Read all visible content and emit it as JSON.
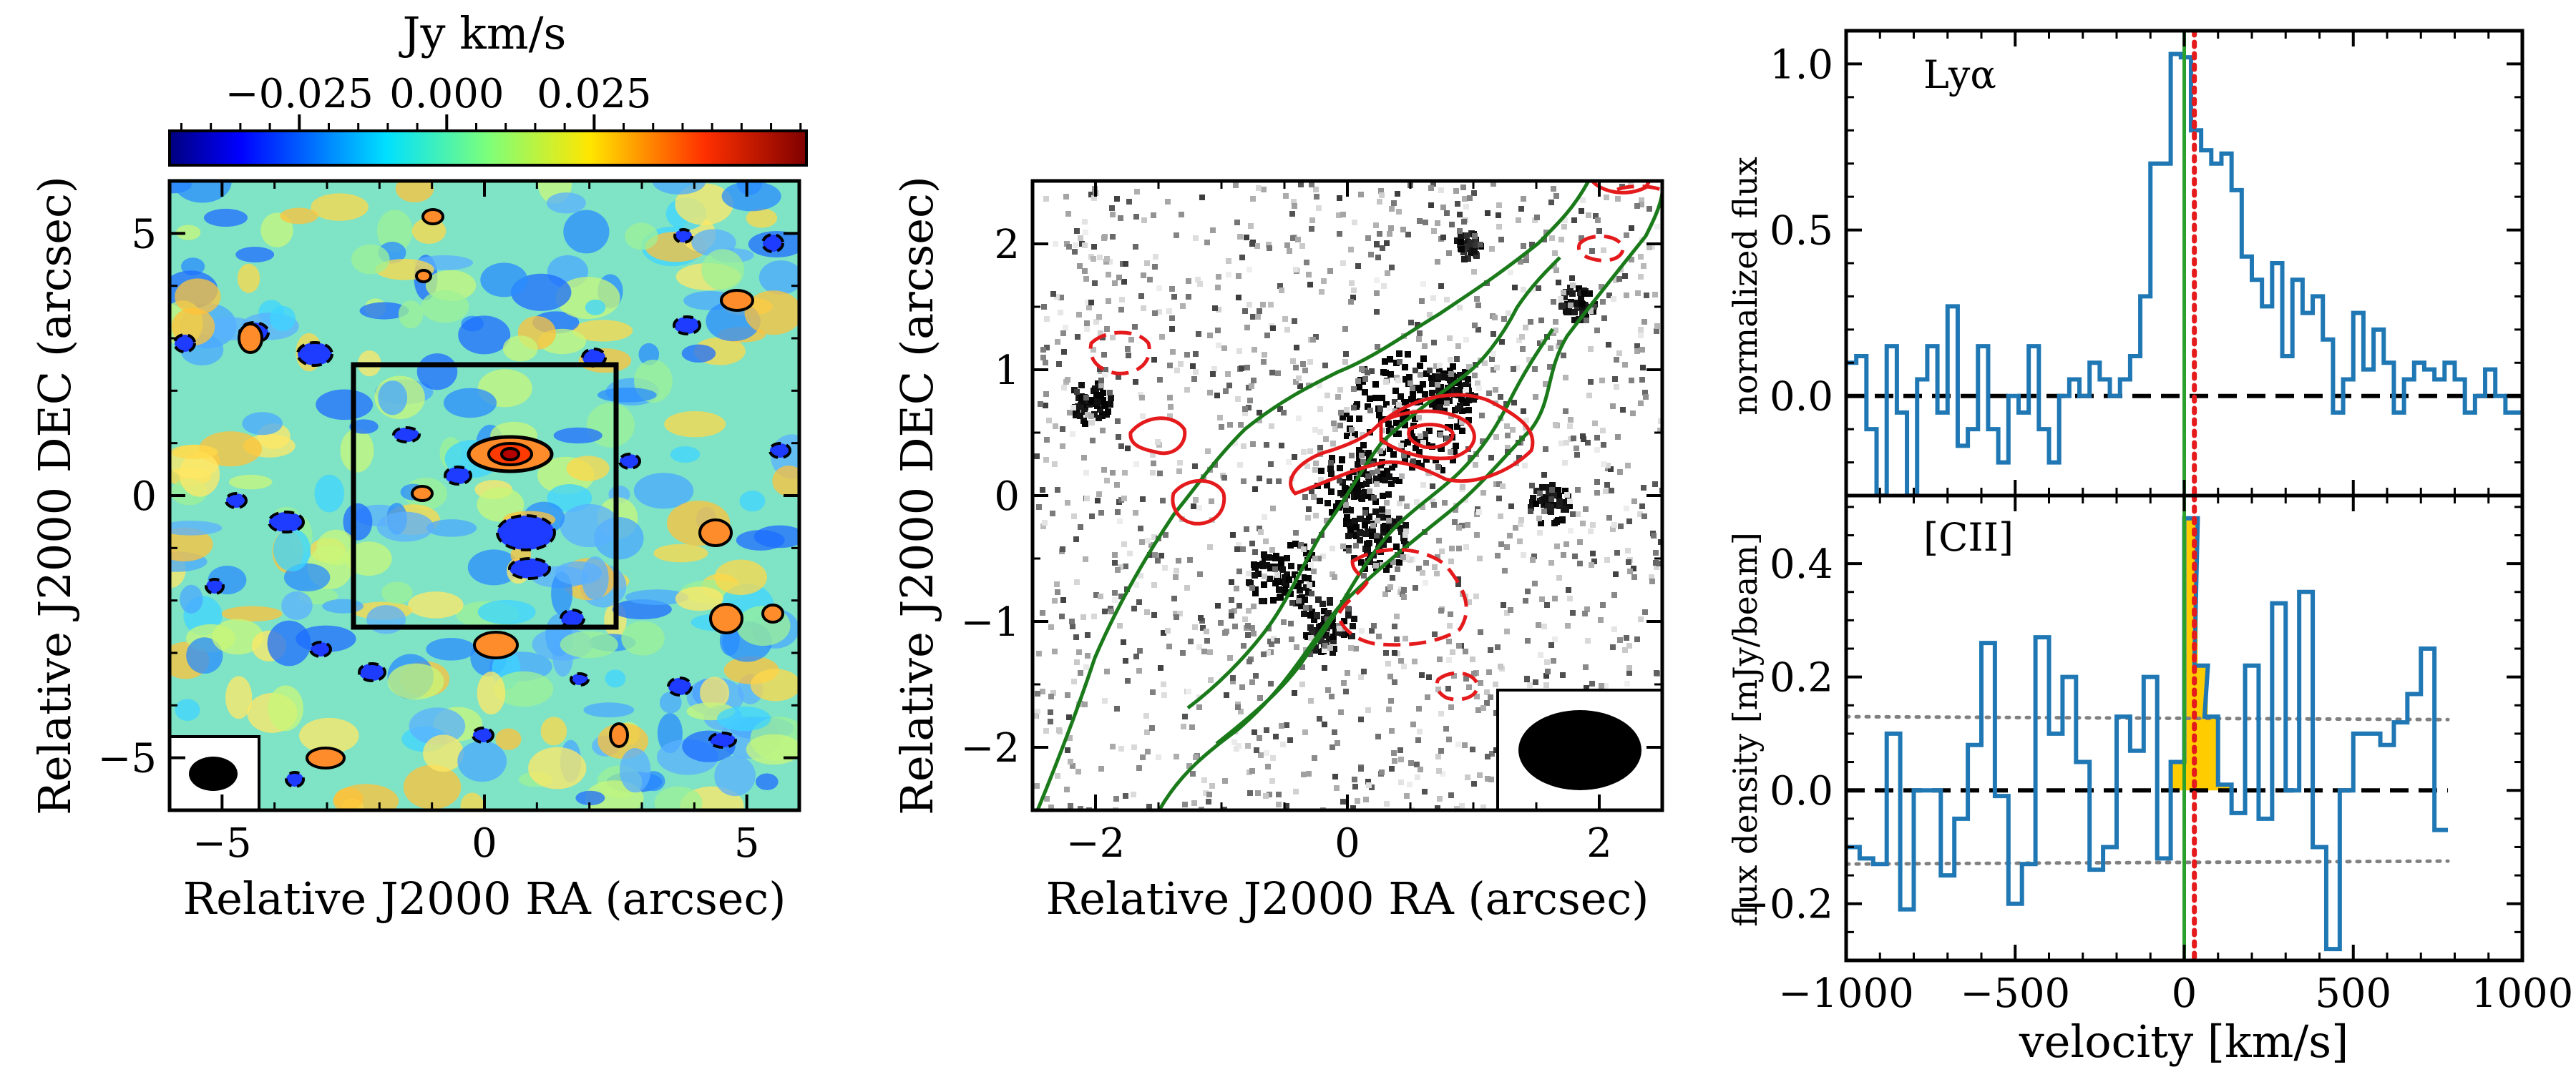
{
  "figure": {
    "colorbar": {
      "label": "Jy km/s",
      "ticks": [
        -0.025,
        0.0,
        0.025
      ],
      "tick_labels": [
        "−0.025",
        "0.000",
        "0.025"
      ],
      "range": [
        -0.047,
        0.061
      ],
      "colormap": "jet"
    }
  },
  "chart_data": [
    {
      "type": "heatmap",
      "name": "cii-moment0-map",
      "xlabel": "Relative J2000 RA (arcsec)",
      "ylabel": "Relative J2000 DEC (arcsec)",
      "xlim": [
        -6,
        6
      ],
      "ylim": [
        -6,
        6
      ],
      "xticks": [
        -5,
        0,
        5
      ],
      "xtick_labels": [
        "−5",
        "0",
        "5"
      ],
      "yticks": [
        -5,
        0,
        5
      ],
      "ytick_labels": [
        "−5",
        "0",
        "5"
      ],
      "zoom_box": {
        "x": [
          -2.5,
          2.5
        ],
        "y": [
          -2.5,
          2.5
        ]
      },
      "peak_source": {
        "x": 0.5,
        "y": 0.7
      },
      "beam": "filled black ellipse, lower-left corner"
    },
    {
      "type": "heatmap",
      "name": "optical-image-with-contours",
      "xlabel": "Relative J2000 RA (arcsec)",
      "ylabel": "Relative J2000 DEC (arcsec)",
      "xlim": [
        -2.5,
        2.5
      ],
      "ylim": [
        -2.5,
        2.5
      ],
      "xticks": [
        -2,
        0,
        2
      ],
      "xtick_labels": [
        "−2",
        "0",
        "2"
      ],
      "yticks": [
        -2,
        -1,
        0,
        1,
        2
      ],
      "ytick_labels": [
        "−2",
        "−1",
        "0",
        "1",
        "2"
      ],
      "contour_colors": {
        "cii": "#e41a1c",
        "lya": "#1a7a1a"
      },
      "beam": "filled black ellipse, lower-right corner"
    },
    {
      "type": "line",
      "name": "lya-spectrum",
      "label": "Lyα",
      "ylabel": "normalized flux",
      "xlim": [
        -1000,
        1000
      ],
      "ylim": [
        -0.3,
        1.1
      ],
      "yticks": [
        0.0,
        0.5,
        1.0
      ],
      "ytick_labels": [
        "0.0",
        "0.5",
        "1.0"
      ],
      "zero_line": 0.0,
      "systemic_velocity": 0,
      "red_marker_velocity": 30,
      "color": "#1f77b4",
      "x": [
        -1000,
        -970,
        -940,
        -910,
        -880,
        -850,
        -820,
        -790,
        -760,
        -730,
        -700,
        -670,
        -640,
        -610,
        -580,
        -550,
        -520,
        -490,
        -460,
        -430,
        -400,
        -370,
        -340,
        -310,
        -280,
        -250,
        -220,
        -190,
        -160,
        -130,
        -100,
        -70,
        -40,
        -10,
        20,
        50,
        80,
        110,
        140,
        170,
        200,
        230,
        260,
        290,
        320,
        350,
        380,
        410,
        440,
        470,
        500,
        530,
        560,
        590,
        620,
        650,
        680,
        710,
        740,
        770,
        800,
        830,
        860,
        890,
        920,
        950,
        980
      ],
      "values": [
        0.1,
        0.12,
        -0.1,
        -0.3,
        0.15,
        -0.05,
        -0.3,
        0.05,
        0.15,
        -0.05,
        0.27,
        -0.15,
        -0.1,
        0.15,
        -0.1,
        -0.2,
        0.0,
        -0.05,
        0.15,
        -0.1,
        -0.2,
        0.0,
        0.05,
        0.0,
        0.1,
        0.05,
        0.0,
        0.05,
        0.12,
        0.3,
        0.7,
        0.7,
        1.03,
        1.02,
        0.8,
        0.74,
        0.7,
        0.73,
        0.62,
        0.42,
        0.35,
        0.27,
        0.4,
        0.12,
        0.35,
        0.25,
        0.3,
        0.17,
        -0.05,
        0.05,
        0.25,
        0.08,
        0.2,
        0.1,
        -0.05,
        0.05,
        0.1,
        0.08,
        0.05,
        0.1,
        0.05,
        -0.05,
        0.0,
        0.08,
        0.0,
        -0.05,
        -0.05
      ]
    },
    {
      "type": "line",
      "name": "cii-spectrum",
      "label": "[CII]",
      "xlabel": "velocity [km/s]",
      "ylabel": "flux density [mJy/beam]",
      "xlim": [
        -1000,
        1000
      ],
      "ylim": [
        -0.3,
        0.52
      ],
      "xticks": [
        -1000,
        -500,
        0,
        500,
        1000
      ],
      "xtick_labels": [
        "−1000",
        "−500",
        "0",
        "500",
        "1000"
      ],
      "yticks": [
        -0.2,
        0.0,
        0.2,
        0.4
      ],
      "ytick_labels": [
        "−0.2",
        "0.0",
        "0.2",
        "0.4"
      ],
      "zero_line": 0.0,
      "rms_lines": [
        0.13,
        -0.13
      ],
      "systemic_velocity": 0,
      "red_marker_velocity": 30,
      "color": "#1f77b4",
      "fill_color": "#ffcc00",
      "fill_range": [
        -40,
        140
      ],
      "x": [
        -1000,
        -960,
        -920,
        -880,
        -840,
        -800,
        -760,
        -720,
        -680,
        -640,
        -600,
        -560,
        -520,
        -480,
        -440,
        -400,
        -360,
        -320,
        -280,
        -240,
        -200,
        -160,
        -120,
        -80,
        -40,
        0,
        30,
        60,
        100,
        140,
        180,
        220,
        260,
        300,
        340,
        380,
        420,
        460,
        500,
        540,
        580,
        620,
        660,
        700,
        740
      ],
      "values": [
        -0.1,
        -0.12,
        -0.13,
        0.1,
        -0.21,
        0.0,
        0.0,
        -0.15,
        -0.05,
        0.08,
        0.26,
        -0.01,
        -0.2,
        -0.13,
        0.27,
        0.1,
        0.2,
        0.05,
        -0.14,
        -0.1,
        0.13,
        0.07,
        0.2,
        -0.12,
        0.05,
        0.48,
        0.22,
        0.13,
        0.01,
        -0.04,
        0.22,
        -0.05,
        0.33,
        0.0,
        0.35,
        -0.1,
        -0.28,
        0.0,
        0.1,
        0.1,
        0.08,
        0.12,
        0.17,
        0.25,
        -0.07
      ]
    }
  ]
}
